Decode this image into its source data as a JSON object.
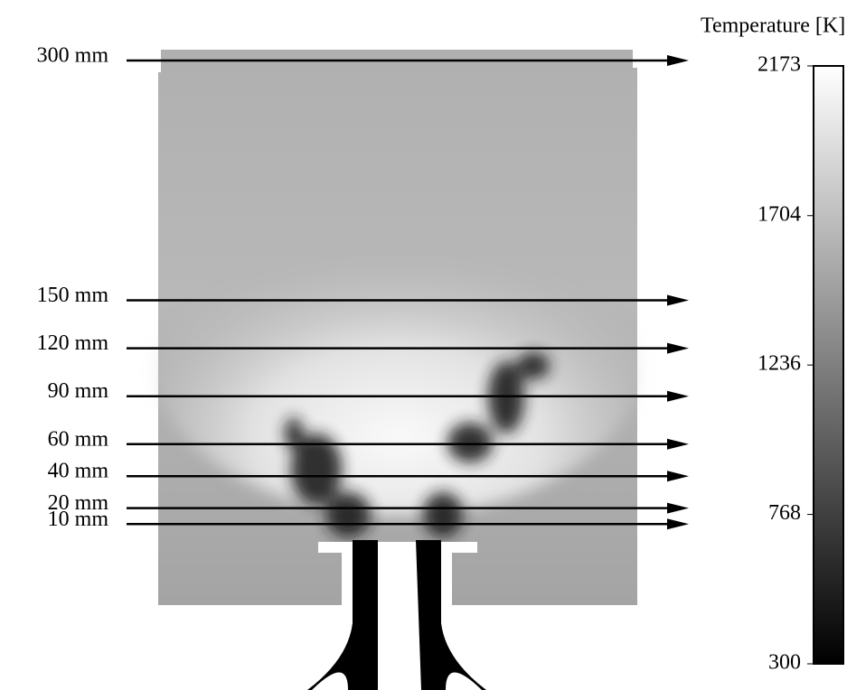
{
  "colorbar": {
    "title": "Temperature [K]",
    "range": [
      300,
      2173
    ],
    "ticks": [
      300,
      768,
      1236,
      1704,
      2173
    ]
  },
  "probe_lines": [
    {
      "value": 300,
      "label": "300 mm"
    },
    {
      "value": 150,
      "label": "150 mm"
    },
    {
      "value": 120,
      "label": "120 mm"
    },
    {
      "value": 90,
      "label": "90 mm"
    },
    {
      "value": 60,
      "label": "60 mm"
    },
    {
      "value": 40,
      "label": "40 mm"
    },
    {
      "value": 20,
      "label": "20 mm"
    },
    {
      "value": 10,
      "label": "10 mm"
    }
  ]
}
